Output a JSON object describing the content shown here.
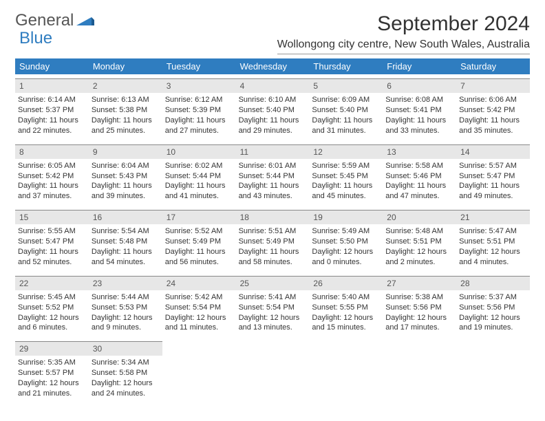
{
  "logo": {
    "part1": "General",
    "part2": "Blue"
  },
  "title": "September 2024",
  "location": "Wollongong city centre, New South Wales, Australia",
  "colors": {
    "header_bg": "#2f7dc0",
    "daynum_bg": "#e7e7e7"
  },
  "dayNames": [
    "Sunday",
    "Monday",
    "Tuesday",
    "Wednesday",
    "Thursday",
    "Friday",
    "Saturday"
  ],
  "weeks": [
    [
      {
        "d": "1",
        "l1": "Sunrise: 6:14 AM",
        "l2": "Sunset: 5:37 PM",
        "l3": "Daylight: 11 hours",
        "l4": "and 22 minutes."
      },
      {
        "d": "2",
        "l1": "Sunrise: 6:13 AM",
        "l2": "Sunset: 5:38 PM",
        "l3": "Daylight: 11 hours",
        "l4": "and 25 minutes."
      },
      {
        "d": "3",
        "l1": "Sunrise: 6:12 AM",
        "l2": "Sunset: 5:39 PM",
        "l3": "Daylight: 11 hours",
        "l4": "and 27 minutes."
      },
      {
        "d": "4",
        "l1": "Sunrise: 6:10 AM",
        "l2": "Sunset: 5:40 PM",
        "l3": "Daylight: 11 hours",
        "l4": "and 29 minutes."
      },
      {
        "d": "5",
        "l1": "Sunrise: 6:09 AM",
        "l2": "Sunset: 5:40 PM",
        "l3": "Daylight: 11 hours",
        "l4": "and 31 minutes."
      },
      {
        "d": "6",
        "l1": "Sunrise: 6:08 AM",
        "l2": "Sunset: 5:41 PM",
        "l3": "Daylight: 11 hours",
        "l4": "and 33 minutes."
      },
      {
        "d": "7",
        "l1": "Sunrise: 6:06 AM",
        "l2": "Sunset: 5:42 PM",
        "l3": "Daylight: 11 hours",
        "l4": "and 35 minutes."
      }
    ],
    [
      {
        "d": "8",
        "l1": "Sunrise: 6:05 AM",
        "l2": "Sunset: 5:42 PM",
        "l3": "Daylight: 11 hours",
        "l4": "and 37 minutes."
      },
      {
        "d": "9",
        "l1": "Sunrise: 6:04 AM",
        "l2": "Sunset: 5:43 PM",
        "l3": "Daylight: 11 hours",
        "l4": "and 39 minutes."
      },
      {
        "d": "10",
        "l1": "Sunrise: 6:02 AM",
        "l2": "Sunset: 5:44 PM",
        "l3": "Daylight: 11 hours",
        "l4": "and 41 minutes."
      },
      {
        "d": "11",
        "l1": "Sunrise: 6:01 AM",
        "l2": "Sunset: 5:44 PM",
        "l3": "Daylight: 11 hours",
        "l4": "and 43 minutes."
      },
      {
        "d": "12",
        "l1": "Sunrise: 5:59 AM",
        "l2": "Sunset: 5:45 PM",
        "l3": "Daylight: 11 hours",
        "l4": "and 45 minutes."
      },
      {
        "d": "13",
        "l1": "Sunrise: 5:58 AM",
        "l2": "Sunset: 5:46 PM",
        "l3": "Daylight: 11 hours",
        "l4": "and 47 minutes."
      },
      {
        "d": "14",
        "l1": "Sunrise: 5:57 AM",
        "l2": "Sunset: 5:47 PM",
        "l3": "Daylight: 11 hours",
        "l4": "and 49 minutes."
      }
    ],
    [
      {
        "d": "15",
        "l1": "Sunrise: 5:55 AM",
        "l2": "Sunset: 5:47 PM",
        "l3": "Daylight: 11 hours",
        "l4": "and 52 minutes."
      },
      {
        "d": "16",
        "l1": "Sunrise: 5:54 AM",
        "l2": "Sunset: 5:48 PM",
        "l3": "Daylight: 11 hours",
        "l4": "and 54 minutes."
      },
      {
        "d": "17",
        "l1": "Sunrise: 5:52 AM",
        "l2": "Sunset: 5:49 PM",
        "l3": "Daylight: 11 hours",
        "l4": "and 56 minutes."
      },
      {
        "d": "18",
        "l1": "Sunrise: 5:51 AM",
        "l2": "Sunset: 5:49 PM",
        "l3": "Daylight: 11 hours",
        "l4": "and 58 minutes."
      },
      {
        "d": "19",
        "l1": "Sunrise: 5:49 AM",
        "l2": "Sunset: 5:50 PM",
        "l3": "Daylight: 12 hours",
        "l4": "and 0 minutes."
      },
      {
        "d": "20",
        "l1": "Sunrise: 5:48 AM",
        "l2": "Sunset: 5:51 PM",
        "l3": "Daylight: 12 hours",
        "l4": "and 2 minutes."
      },
      {
        "d": "21",
        "l1": "Sunrise: 5:47 AM",
        "l2": "Sunset: 5:51 PM",
        "l3": "Daylight: 12 hours",
        "l4": "and 4 minutes."
      }
    ],
    [
      {
        "d": "22",
        "l1": "Sunrise: 5:45 AM",
        "l2": "Sunset: 5:52 PM",
        "l3": "Daylight: 12 hours",
        "l4": "and 6 minutes."
      },
      {
        "d": "23",
        "l1": "Sunrise: 5:44 AM",
        "l2": "Sunset: 5:53 PM",
        "l3": "Daylight: 12 hours",
        "l4": "and 9 minutes."
      },
      {
        "d": "24",
        "l1": "Sunrise: 5:42 AM",
        "l2": "Sunset: 5:54 PM",
        "l3": "Daylight: 12 hours",
        "l4": "and 11 minutes."
      },
      {
        "d": "25",
        "l1": "Sunrise: 5:41 AM",
        "l2": "Sunset: 5:54 PM",
        "l3": "Daylight: 12 hours",
        "l4": "and 13 minutes."
      },
      {
        "d": "26",
        "l1": "Sunrise: 5:40 AM",
        "l2": "Sunset: 5:55 PM",
        "l3": "Daylight: 12 hours",
        "l4": "and 15 minutes."
      },
      {
        "d": "27",
        "l1": "Sunrise: 5:38 AM",
        "l2": "Sunset: 5:56 PM",
        "l3": "Daylight: 12 hours",
        "l4": "and 17 minutes."
      },
      {
        "d": "28",
        "l1": "Sunrise: 5:37 AM",
        "l2": "Sunset: 5:56 PM",
        "l3": "Daylight: 12 hours",
        "l4": "and 19 minutes."
      }
    ],
    [
      {
        "d": "29",
        "l1": "Sunrise: 5:35 AM",
        "l2": "Sunset: 5:57 PM",
        "l3": "Daylight: 12 hours",
        "l4": "and 21 minutes."
      },
      {
        "d": "30",
        "l1": "Sunrise: 5:34 AM",
        "l2": "Sunset: 5:58 PM",
        "l3": "Daylight: 12 hours",
        "l4": "and 24 minutes."
      },
      null,
      null,
      null,
      null,
      null
    ]
  ]
}
